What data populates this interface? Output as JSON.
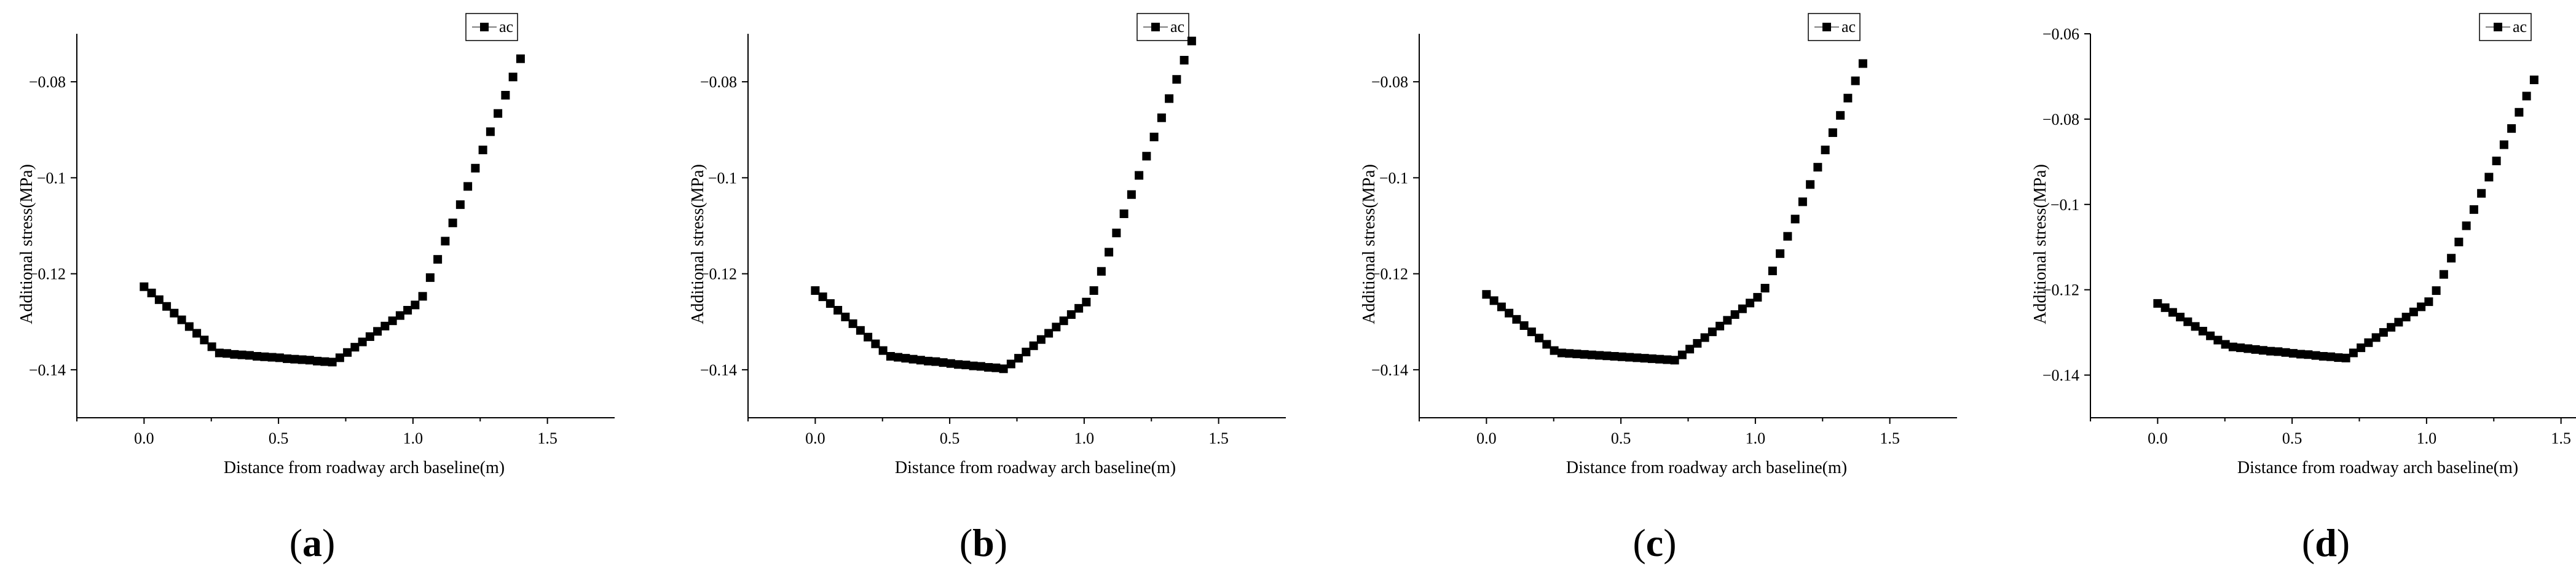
{
  "chart_data": [
    {
      "type": "scatter",
      "panel_label": "(a)",
      "xlabel": "Distance from roadway arch baseline(m)",
      "ylabel": "Additional stress(MPa)",
      "xlim": [
        -0.25,
        1.75
      ],
      "ylim": [
        -0.15,
        -0.07
      ],
      "x_ticks": [
        "0.0",
        "0.5",
        "1.0",
        "1.5"
      ],
      "x_tick_values": [
        0,
        0.5,
        1.0,
        1.5
      ],
      "y_ticks": [
        "−0.08",
        "−0.1",
        "−0.12",
        "−0.14"
      ],
      "y_tick_values": [
        -0.08,
        -0.1,
        -0.12,
        -0.14
      ],
      "legend": {
        "entries": [
          "ac"
        ],
        "placement": "top-right"
      },
      "series": [
        {
          "name": "ac",
          "marker": "square",
          "color": "#000000",
          "x": [
            0,
            0.028,
            0.056,
            0.084,
            0.112,
            0.14,
            0.168,
            0.196,
            0.224,
            0.252,
            0.28,
            0.308,
            0.336,
            0.364,
            0.392,
            0.42,
            0.448,
            0.476,
            0.504,
            0.532,
            0.56,
            0.588,
            0.616,
            0.644,
            0.672,
            0.7,
            0.728,
            0.756,
            0.784,
            0.812,
            0.84,
            0.868,
            0.896,
            0.924,
            0.952,
            0.98,
            1.008,
            1.036,
            1.064,
            1.092,
            1.12,
            1.148,
            1.176,
            1.204,
            1.232,
            1.26,
            1.288,
            1.316,
            1.344,
            1.372,
            1.4
          ],
          "y": [
            -0.1227,
            -0.124,
            -0.1254,
            -0.1268,
            -0.1282,
            -0.1296,
            -0.131,
            -0.1324,
            -0.1338,
            -0.1352,
            -0.1365,
            -0.1366,
            -0.1368,
            -0.1369,
            -0.137,
            -0.1372,
            -0.1373,
            -0.1374,
            -0.1375,
            -0.1377,
            -0.1378,
            -0.1379,
            -0.138,
            -0.1382,
            -0.1383,
            -0.1384,
            -0.1375,
            -0.1364,
            -0.1353,
            -0.1342,
            -0.1331,
            -0.132,
            -0.1309,
            -0.1298,
            -0.1287,
            -0.1276,
            -0.1265,
            -0.1247,
            -0.1208,
            -0.117,
            -0.1132,
            -0.1094,
            -0.1056,
            -0.1018,
            -0.098,
            -0.0942,
            -0.0904,
            -0.0866,
            -0.0828,
            -0.079,
            -0.0752
          ]
        }
      ]
    },
    {
      "type": "scatter",
      "panel_label": "(b)",
      "xlabel": "Distance from roadway arch baseline(m)",
      "ylabel": "Additional stress(MPa)",
      "xlim": [
        -0.25,
        1.75
      ],
      "ylim": [
        -0.15,
        -0.07
      ],
      "x_ticks": [
        "0.0",
        "0.5",
        "1.0",
        "1.5"
      ],
      "x_tick_values": [
        0,
        0.5,
        1.0,
        1.5
      ],
      "y_ticks": [
        "−0.08",
        "−0.1",
        "−0.12",
        "−0.14"
      ],
      "y_tick_values": [
        -0.08,
        -0.1,
        -0.12,
        -0.14
      ],
      "legend": {
        "entries": [
          "ac"
        ],
        "placement": "top-right"
      },
      "series": [
        {
          "name": "ac",
          "marker": "square",
          "color": "#000000",
          "x": [
            0,
            0.028,
            0.056,
            0.084,
            0.112,
            0.14,
            0.168,
            0.196,
            0.224,
            0.252,
            0.28,
            0.308,
            0.336,
            0.364,
            0.392,
            0.42,
            0.448,
            0.476,
            0.504,
            0.532,
            0.56,
            0.588,
            0.616,
            0.644,
            0.672,
            0.7,
            0.728,
            0.756,
            0.784,
            0.812,
            0.84,
            0.868,
            0.896,
            0.924,
            0.952,
            0.98,
            1.008,
            1.036,
            1.064,
            1.092,
            1.12,
            1.148,
            1.176,
            1.204,
            1.232,
            1.26,
            1.288,
            1.316,
            1.344,
            1.372,
            1.4
          ],
          "y": [
            -0.1235,
            -0.1248,
            -0.1262,
            -0.1276,
            -0.129,
            -0.1304,
            -0.1318,
            -0.1332,
            -0.1346,
            -0.136,
            -0.1372,
            -0.1374,
            -0.1376,
            -0.1378,
            -0.138,
            -0.1382,
            -0.1383,
            -0.1385,
            -0.1387,
            -0.1389,
            -0.139,
            -0.1392,
            -0.1393,
            -0.1395,
            -0.1396,
            -0.1398,
            -0.1388,
            -0.1376,
            -0.1363,
            -0.135,
            -0.1337,
            -0.1324,
            -0.1311,
            -0.1298,
            -0.1285,
            -0.1272,
            -0.1259,
            -0.1235,
            -0.1195,
            -0.1155,
            -0.1115,
            -0.1075,
            -0.1035,
            -0.0995,
            -0.0955,
            -0.0915,
            -0.0875,
            -0.0835,
            -0.0795,
            -0.0755,
            -0.0715
          ]
        }
      ]
    },
    {
      "type": "scatter",
      "panel_label": "(c)",
      "xlabel": "Distance from roadway arch baseline(m)",
      "ylabel": "Additional stress(MPa)",
      "xlim": [
        -0.25,
        1.75
      ],
      "ylim": [
        -0.15,
        -0.07
      ],
      "x_ticks": [
        "0.0",
        "0.5",
        "1.0",
        "1.5"
      ],
      "x_tick_values": [
        0,
        0.5,
        1.0,
        1.5
      ],
      "y_ticks": [
        "−0.08",
        "−0.1",
        "−0.12",
        "−0.14"
      ],
      "y_tick_values": [
        -0.08,
        -0.1,
        -0.12,
        -0.14
      ],
      "legend": {
        "entries": [
          "ac"
        ],
        "placement": "top-right"
      },
      "series": [
        {
          "name": "ac",
          "marker": "square",
          "color": "#000000",
          "x": [
            0,
            0.028,
            0.056,
            0.084,
            0.112,
            0.14,
            0.168,
            0.196,
            0.224,
            0.252,
            0.28,
            0.308,
            0.336,
            0.364,
            0.392,
            0.42,
            0.448,
            0.476,
            0.504,
            0.532,
            0.56,
            0.588,
            0.616,
            0.644,
            0.672,
            0.7,
            0.728,
            0.756,
            0.784,
            0.812,
            0.84,
            0.868,
            0.896,
            0.924,
            0.952,
            0.98,
            1.008,
            1.036,
            1.064,
            1.092,
            1.12,
            1.148,
            1.176,
            1.204,
            1.232,
            1.26,
            1.288,
            1.316,
            1.344,
            1.372,
            1.4
          ],
          "y": [
            -0.1243,
            -0.1256,
            -0.1269,
            -0.1282,
            -0.1295,
            -0.1308,
            -0.1321,
            -0.1334,
            -0.1347,
            -0.136,
            -0.1365,
            -0.1366,
            -0.1367,
            -0.1368,
            -0.1369,
            -0.137,
            -0.1371,
            -0.1372,
            -0.1373,
            -0.1374,
            -0.1375,
            -0.1376,
            -0.1377,
            -0.1378,
            -0.1379,
            -0.138,
            -0.1369,
            -0.1357,
            -0.1345,
            -0.1333,
            -0.1321,
            -0.1309,
            -0.1297,
            -0.1285,
            -0.1273,
            -0.1261,
            -0.1249,
            -0.123,
            -0.1194,
            -0.1158,
            -0.1122,
            -0.1086,
            -0.105,
            -0.1014,
            -0.0978,
            -0.0942,
            -0.0906,
            -0.087,
            -0.0834,
            -0.0798,
            -0.0762
          ]
        }
      ]
    },
    {
      "type": "scatter",
      "panel_label": "(d)",
      "xlabel": "Distance from roadway arch baseline(m)",
      "ylabel": "Additional stress(MPa)",
      "xlim": [
        -0.25,
        1.75
      ],
      "ylim": [
        -0.15,
        -0.06
      ],
      "x_ticks": [
        "0.0",
        "0.5",
        "1.0",
        "1.5"
      ],
      "x_tick_values": [
        0,
        0.5,
        1.0,
        1.5
      ],
      "y_ticks": [
        "−0.06",
        "−0.08",
        "−0.1",
        "−0.12",
        "−0.14"
      ],
      "y_tick_values": [
        -0.06,
        -0.08,
        -0.1,
        -0.12,
        -0.14
      ],
      "legend": {
        "entries": [
          "ac"
        ],
        "placement": "top-right"
      },
      "series": [
        {
          "name": "ac",
          "marker": "square",
          "color": "#000000",
          "x": [
            0,
            0.028,
            0.056,
            0.084,
            0.112,
            0.14,
            0.168,
            0.196,
            0.224,
            0.252,
            0.28,
            0.308,
            0.336,
            0.364,
            0.392,
            0.42,
            0.448,
            0.476,
            0.504,
            0.532,
            0.56,
            0.588,
            0.616,
            0.644,
            0.672,
            0.7,
            0.728,
            0.756,
            0.784,
            0.812,
            0.84,
            0.868,
            0.896,
            0.924,
            0.952,
            0.98,
            1.008,
            1.036,
            1.064,
            1.092,
            1.12,
            1.148,
            1.176,
            1.204,
            1.232,
            1.26,
            1.288,
            1.316,
            1.344,
            1.372,
            1.4
          ],
          "y": [
            -0.1232,
            -0.1242,
            -0.1253,
            -0.1264,
            -0.1275,
            -0.1286,
            -0.1297,
            -0.1308,
            -0.1318,
            -0.1328,
            -0.1334,
            -0.1336,
            -0.1338,
            -0.134,
            -0.1342,
            -0.1344,
            -0.1345,
            -0.1347,
            -0.1349,
            -0.1351,
            -0.1352,
            -0.1354,
            -0.1356,
            -0.1357,
            -0.1359,
            -0.136,
            -0.1348,
            -0.1336,
            -0.1324,
            -0.1312,
            -0.13,
            -0.1288,
            -0.1276,
            -0.1264,
            -0.1252,
            -0.124,
            -0.1228,
            -0.1202,
            -0.1164,
            -0.1126,
            -0.1088,
            -0.105,
            -0.1012,
            -0.0974,
            -0.0936,
            -0.0898,
            -0.086,
            -0.0822,
            -0.0784,
            -0.0746,
            -0.0708
          ]
        }
      ]
    }
  ]
}
